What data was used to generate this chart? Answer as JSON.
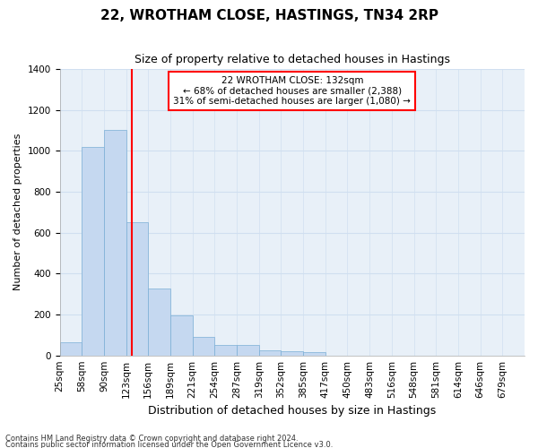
{
  "title": "22, WROTHAM CLOSE, HASTINGS, TN34 2RP",
  "subtitle": "Size of property relative to detached houses in Hastings",
  "xlabel": "Distribution of detached houses by size in Hastings",
  "ylabel": "Number of detached properties",
  "footnote1": "Contains HM Land Registry data © Crown copyright and database right 2024.",
  "footnote2": "Contains public sector information licensed under the Open Government Licence v3.0.",
  "categories": [
    "25sqm",
    "58sqm",
    "90sqm",
    "123sqm",
    "156sqm",
    "189sqm",
    "221sqm",
    "254sqm",
    "287sqm",
    "319sqm",
    "352sqm",
    "385sqm",
    "417sqm",
    "450sqm",
    "483sqm",
    "516sqm",
    "548sqm",
    "581sqm",
    "614sqm",
    "646sqm",
    "679sqm"
  ],
  "values": [
    65,
    1020,
    1100,
    650,
    325,
    195,
    90,
    50,
    50,
    25,
    20,
    15,
    0,
    0,
    0,
    0,
    0,
    0,
    0,
    0,
    0
  ],
  "bar_color": "#c5d8f0",
  "bar_edge_color": "#7aaed6",
  "grid_color": "#d0dff0",
  "background_color": "#e8f0f8",
  "marker_label": "22 WROTHAM CLOSE: 132sqm",
  "marker_line1": "← 68% of detached houses are smaller (2,388)",
  "marker_line2": "31% of semi-detached houses are larger (1,080) →",
  "marker_color": "red",
  "ylim": [
    0,
    1400
  ],
  "yticks": [
    0,
    200,
    400,
    600,
    800,
    1000,
    1200,
    1400
  ],
  "title_fontsize": 11,
  "subtitle_fontsize": 9,
  "ylabel_fontsize": 8,
  "xlabel_fontsize": 9,
  "tick_fontsize": 7.5
}
